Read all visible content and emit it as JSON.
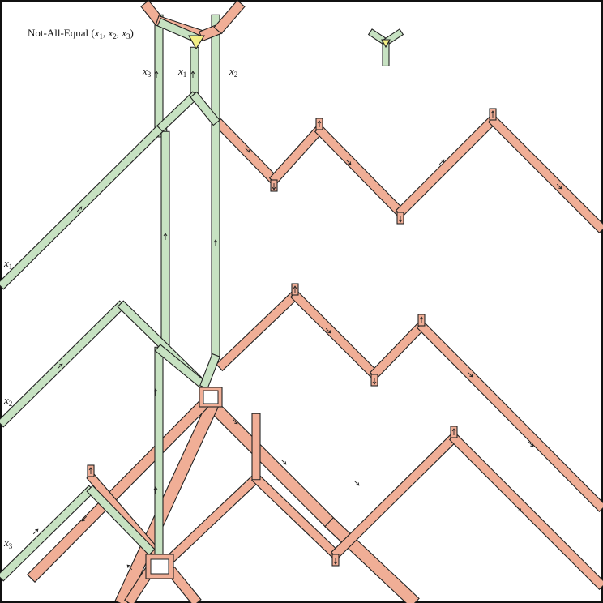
{
  "gadget": {
    "title_prefix": "Not-All-Equal (",
    "title_args": [
      {
        "var": "x",
        "sub": "1",
        "sep": ", "
      },
      {
        "var": "x",
        "sub": "2",
        "sep": ", "
      },
      {
        "var": "x",
        "sub": "3",
        "sep": ")"
      }
    ]
  },
  "wire_labels": {
    "top": [
      {
        "var": "x",
        "sub": "3"
      },
      {
        "var": "x",
        "sub": "1"
      },
      {
        "var": "x",
        "sub": "2"
      }
    ],
    "left": [
      {
        "var": "x",
        "sub": "1"
      },
      {
        "var": "x",
        "sub": "2"
      },
      {
        "var": "x",
        "sub": "3"
      }
    ]
  },
  "colors": {
    "variable_wire": "#c7e2c2",
    "clause_wire": "#f0ae96",
    "junction": "#f3ef86",
    "outline": "#222222"
  },
  "icons": [
    "up-arrow-icon",
    "down-arrow-icon",
    "junction-icon"
  ]
}
